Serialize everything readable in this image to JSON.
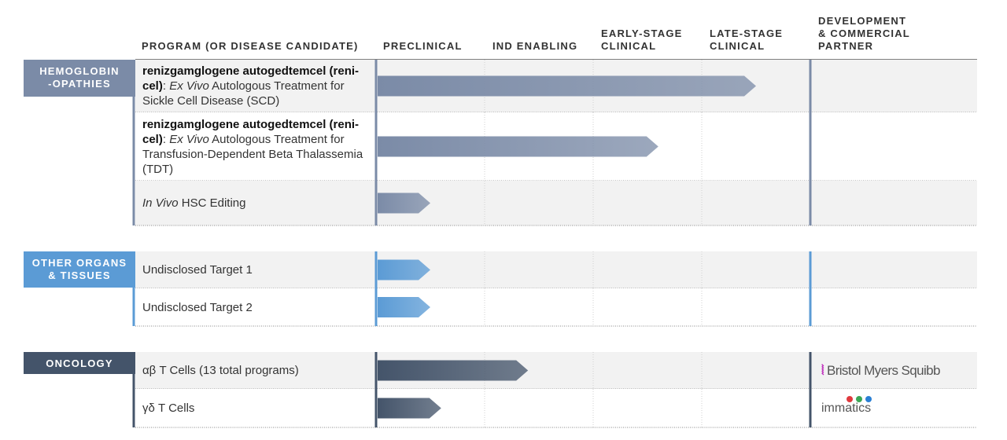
{
  "header": {
    "columns": [
      [
        "PROGRAM (OR DISEASE CANDIDATE)"
      ],
      [
        "PRECLINICAL"
      ],
      [
        "IND ENABLING"
      ],
      [
        "EARLY-STAGE",
        "CLINICAL"
      ],
      [
        "LATE-STAGE",
        "CLINICAL"
      ],
      [
        "DEVELOPMENT",
        "& COMMERCIAL",
        "PARTNER"
      ]
    ]
  },
  "groups": [
    {
      "label": [
        "HEMOGLOBIN",
        "-OPATHIES"
      ],
      "color": "#7b8ba7",
      "programs": [
        {
          "parts": [
            {
              "text": "renizgamglogene autogedtemcel (reni-cel)",
              "style": "bold"
            },
            {
              "text": ": ",
              "style": "normal"
            },
            {
              "text": "Ex Vivo",
              "style": "italic"
            },
            {
              "text": " Autologous Treatment for Sickle Cell Disease (SCD)",
              "style": "normal"
            }
          ],
          "progress": 3.5
        },
        {
          "parts": [
            {
              "text": "renizgamglogene autogedtemcel (reni-cel)",
              "style": "bold"
            },
            {
              "text": ": ",
              "style": "normal"
            },
            {
              "text": "Ex Vivo",
              "style": "italic"
            },
            {
              "text": " Autologous Treatment for Transfusion-Dependent Beta Thalassemia (TDT)",
              "style": "normal"
            }
          ],
          "progress": 2.6
        },
        {
          "parts": [
            {
              "text": "In Vivo",
              "style": "italic"
            },
            {
              "text": " HSC Editing",
              "style": "normal"
            }
          ],
          "progress": 0.5
        }
      ]
    },
    {
      "label": [
        "OTHER  ORGANS",
        "& TISSUES"
      ],
      "color": "#5b9bd5",
      "programs": [
        {
          "parts": [
            {
              "text": "Undisclosed Target  1",
              "style": "normal"
            }
          ],
          "progress": 0.5
        },
        {
          "parts": [
            {
              "text": "Undisclosed Target  2",
              "style": "normal"
            }
          ],
          "progress": 0.5
        }
      ]
    },
    {
      "label": [
        "ONCOLOGY"
      ],
      "color": "#44546a",
      "programs": [
        {
          "parts": [
            {
              "text": "αβ T Cells (13 total programs)",
              "style": "normal"
            }
          ],
          "progress": 1.4,
          "partner": "Bristol Myers Squibb"
        },
        {
          "parts": [
            {
              "text": "γδ T Cells",
              "style": "normal"
            }
          ],
          "progress": 0.6,
          "partner": "immatics"
        }
      ]
    }
  ]
}
